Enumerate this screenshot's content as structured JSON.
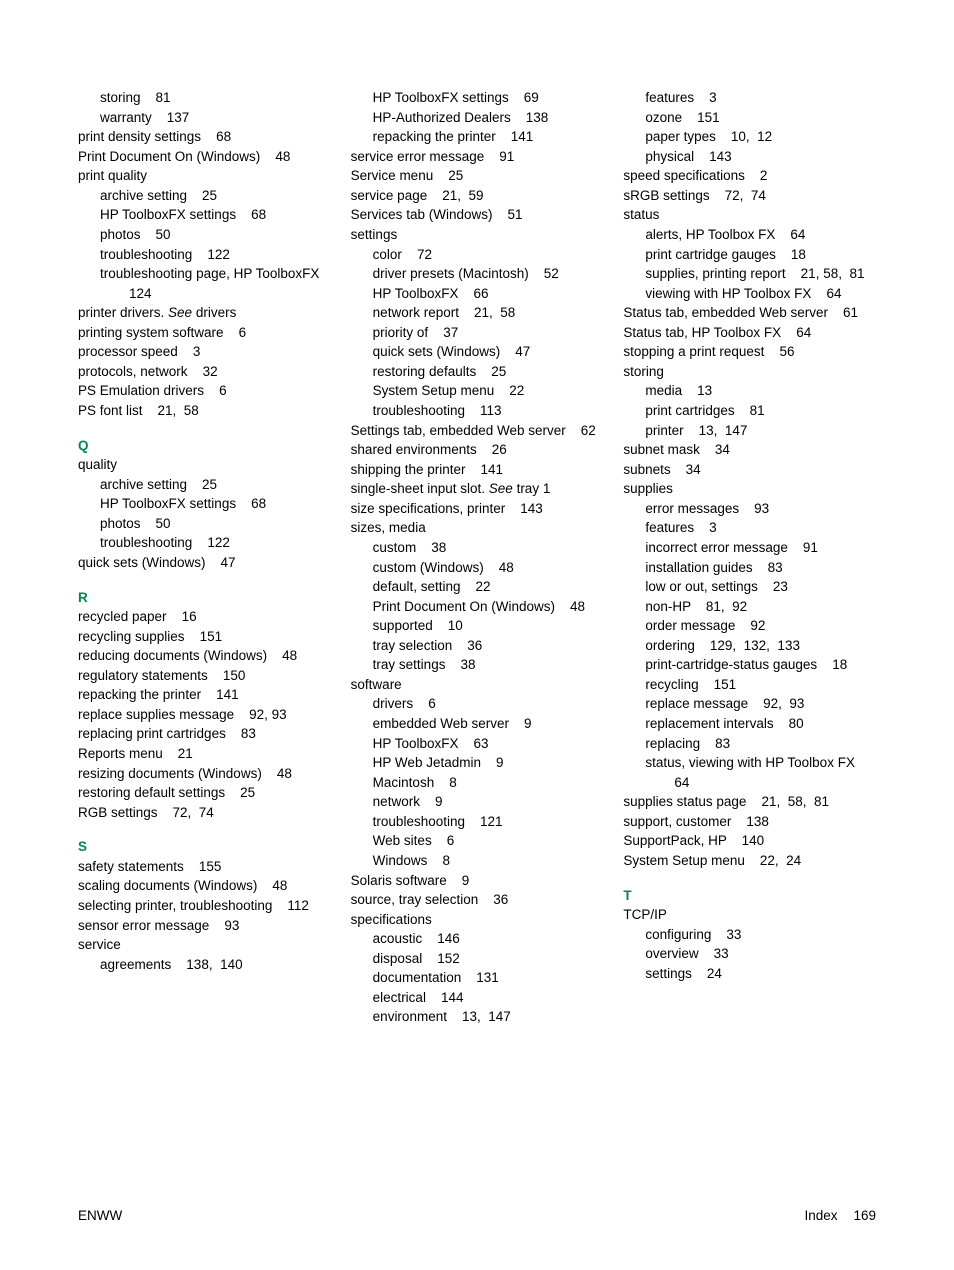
{
  "footer": {
    "left": "ENWW",
    "label": "Index",
    "page": "169"
  },
  "col1": [
    {
      "t": "sub",
      "term": "storing",
      "p": "81"
    },
    {
      "t": "sub",
      "term": "warranty",
      "p": "137"
    },
    {
      "t": "entry",
      "term": "print density settings",
      "p": "68"
    },
    {
      "t": "entry",
      "term": "Print Document On (Windows)",
      "p": "48"
    },
    {
      "t": "entry",
      "term": "print quality",
      "p": ""
    },
    {
      "t": "sub",
      "term": "archive setting",
      "p": "25"
    },
    {
      "t": "sub",
      "term": "HP ToolboxFX settings",
      "p": "68"
    },
    {
      "t": "sub",
      "term": "photos",
      "p": "50"
    },
    {
      "t": "sub",
      "term": "troubleshooting",
      "p": "122"
    },
    {
      "t": "sub",
      "term": "troubleshooting page, HP ToolboxFX",
      "p": "124"
    },
    {
      "t": "entry",
      "term": "printer drivers.",
      "see": "See",
      "seeTarget": "drivers"
    },
    {
      "t": "entry",
      "term": "printing system software",
      "p": "6"
    },
    {
      "t": "entry",
      "term": "processor speed",
      "p": "3"
    },
    {
      "t": "entry",
      "term": "protocols, network",
      "p": "32"
    },
    {
      "t": "entry",
      "term": "PS Emulation drivers",
      "p": "6"
    },
    {
      "t": "entry",
      "term": "PS font list",
      "p": "21,  58"
    },
    {
      "t": "letter",
      "term": "Q"
    },
    {
      "t": "entry",
      "term": "quality",
      "p": ""
    },
    {
      "t": "sub",
      "term": "archive setting",
      "p": "25"
    },
    {
      "t": "sub",
      "term": "HP ToolboxFX settings",
      "p": "68"
    },
    {
      "t": "sub",
      "term": "photos",
      "p": "50"
    },
    {
      "t": "sub",
      "term": "troubleshooting",
      "p": "122"
    },
    {
      "t": "entry",
      "term": "quick sets (Windows)",
      "p": "47"
    },
    {
      "t": "letter",
      "term": "R"
    },
    {
      "t": "entry",
      "term": "recycled paper",
      "p": "16"
    },
    {
      "t": "entry",
      "term": "recycling supplies",
      "p": "151"
    },
    {
      "t": "entry",
      "term": "reducing documents (Windows)",
      "p": "48"
    },
    {
      "t": "entry",
      "term": "regulatory statements",
      "p": "150"
    },
    {
      "t": "entry",
      "term": "repacking the printer",
      "p": "141"
    },
    {
      "t": "entry",
      "term": "replace supplies message",
      "p": "92, 93"
    },
    {
      "t": "entry",
      "term": "replacing print cartridges",
      "p": "83"
    },
    {
      "t": "entry",
      "term": "Reports menu",
      "p": "21"
    },
    {
      "t": "entry",
      "term": "resizing documents (Windows)",
      "p": "48"
    },
    {
      "t": "entry",
      "term": "restoring default settings",
      "p": "25"
    },
    {
      "t": "entry",
      "term": "RGB settings",
      "p": "72,  74"
    },
    {
      "t": "letter",
      "term": "S"
    },
    {
      "t": "entry",
      "term": "safety statements",
      "p": "155"
    },
    {
      "t": "entry",
      "term": "scaling documents (Windows)",
      "p": "48"
    },
    {
      "t": "entry",
      "term": "selecting printer, troubleshooting",
      "p": "112"
    },
    {
      "t": "entry",
      "term": "sensor error message",
      "p": "93"
    },
    {
      "t": "entry",
      "term": "service",
      "p": ""
    },
    {
      "t": "sub",
      "term": "agreements",
      "p": "138,  140"
    }
  ],
  "col2": [
    {
      "t": "sub",
      "term": "HP ToolboxFX settings",
      "p": "69"
    },
    {
      "t": "sub",
      "term": "HP-Authorized Dealers",
      "p": "138"
    },
    {
      "t": "sub",
      "term": "repacking the printer",
      "p": "141"
    },
    {
      "t": "entry",
      "term": "service error message",
      "p": "91"
    },
    {
      "t": "entry",
      "term": "Service menu",
      "p": "25"
    },
    {
      "t": "entry",
      "term": "service page",
      "p": "21,  59"
    },
    {
      "t": "entry",
      "term": "Services tab (Windows)",
      "p": "51"
    },
    {
      "t": "entry",
      "term": "settings",
      "p": ""
    },
    {
      "t": "sub",
      "term": "color",
      "p": "72"
    },
    {
      "t": "sub",
      "term": "driver presets (Macintosh)",
      "p": "52"
    },
    {
      "t": "sub",
      "term": "HP ToolboxFX",
      "p": "66"
    },
    {
      "t": "sub",
      "term": "network report",
      "p": "21,  58"
    },
    {
      "t": "sub",
      "term": "priority of",
      "p": "37"
    },
    {
      "t": "sub",
      "term": "quick sets (Windows)",
      "p": "47"
    },
    {
      "t": "sub",
      "term": "restoring defaults",
      "p": "25"
    },
    {
      "t": "sub",
      "term": "System Setup menu",
      "p": "22"
    },
    {
      "t": "sub",
      "term": "troubleshooting",
      "p": "113"
    },
    {
      "t": "entry",
      "term": "Settings tab, embedded Web server",
      "p": "62"
    },
    {
      "t": "entry",
      "term": "shared environments",
      "p": "26"
    },
    {
      "t": "entry",
      "term": "shipping the printer",
      "p": "141"
    },
    {
      "t": "entry",
      "term": "single-sheet input slot.",
      "see": "See",
      "seeTarget": "tray 1"
    },
    {
      "t": "entry",
      "term": "size specifications, printer",
      "p": "143"
    },
    {
      "t": "entry",
      "term": "sizes, media",
      "p": ""
    },
    {
      "t": "sub",
      "term": "custom",
      "p": "38"
    },
    {
      "t": "sub",
      "term": "custom (Windows)",
      "p": "48"
    },
    {
      "t": "sub",
      "term": "default, setting",
      "p": "22"
    },
    {
      "t": "sub",
      "term": "Print Document On (Windows)",
      "p": "48"
    },
    {
      "t": "sub",
      "term": "supported",
      "p": "10"
    },
    {
      "t": "sub",
      "term": "tray selection",
      "p": "36"
    },
    {
      "t": "sub",
      "term": "tray settings",
      "p": "38"
    },
    {
      "t": "entry",
      "term": "software",
      "p": ""
    },
    {
      "t": "sub",
      "term": "drivers",
      "p": "6"
    },
    {
      "t": "sub",
      "term": "embedded Web server",
      "p": "9"
    },
    {
      "t": "sub",
      "term": "HP ToolboxFX",
      "p": "63"
    },
    {
      "t": "sub",
      "term": "HP Web Jetadmin",
      "p": "9"
    },
    {
      "t": "sub",
      "term": "Macintosh",
      "p": "8"
    },
    {
      "t": "sub",
      "term": "network",
      "p": "9"
    },
    {
      "t": "sub",
      "term": "troubleshooting",
      "p": "121"
    },
    {
      "t": "sub",
      "term": "Web sites",
      "p": "6"
    },
    {
      "t": "sub",
      "term": "Windows",
      "p": "8"
    },
    {
      "t": "entry",
      "term": "Solaris software",
      "p": "9"
    },
    {
      "t": "entry",
      "term": "source, tray selection",
      "p": "36"
    },
    {
      "t": "entry",
      "term": "specifications",
      "p": ""
    },
    {
      "t": "sub",
      "term": "acoustic",
      "p": "146"
    },
    {
      "t": "sub",
      "term": "disposal",
      "p": "152"
    },
    {
      "t": "sub",
      "term": "documentation",
      "p": "131"
    },
    {
      "t": "sub",
      "term": "electrical",
      "p": "144"
    },
    {
      "t": "sub",
      "term": "environment",
      "p": "13,  147"
    }
  ],
  "col3": [
    {
      "t": "sub",
      "term": "features",
      "p": "3"
    },
    {
      "t": "sub",
      "term": "ozone",
      "p": "151"
    },
    {
      "t": "sub",
      "term": "paper types",
      "p": "10,  12"
    },
    {
      "t": "sub",
      "term": "physical",
      "p": "143"
    },
    {
      "t": "entry",
      "term": "speed specifications",
      "p": "2"
    },
    {
      "t": "entry",
      "term": "sRGB settings",
      "p": "72,  74"
    },
    {
      "t": "entry",
      "term": "status",
      "p": ""
    },
    {
      "t": "sub",
      "term": "alerts, HP Toolbox FX",
      "p": "64"
    },
    {
      "t": "sub",
      "term": "print cartridge gauges",
      "p": "18"
    },
    {
      "t": "sub",
      "term": "supplies, printing report",
      "p": "21, 58,  81"
    },
    {
      "t": "sub",
      "term": "viewing with HP Toolbox FX",
      "p": "64"
    },
    {
      "t": "entry",
      "term": "Status tab, embedded Web server",
      "p": "61"
    },
    {
      "t": "entry",
      "term": "Status tab, HP Toolbox FX",
      "p": "64"
    },
    {
      "t": "entry",
      "term": "stopping a print request",
      "p": "56"
    },
    {
      "t": "entry",
      "term": "storing",
      "p": ""
    },
    {
      "t": "sub",
      "term": "media",
      "p": "13"
    },
    {
      "t": "sub",
      "term": "print cartridges",
      "p": "81"
    },
    {
      "t": "sub",
      "term": "printer",
      "p": "13,  147"
    },
    {
      "t": "entry",
      "term": "subnet mask",
      "p": "34"
    },
    {
      "t": "entry",
      "term": "subnets",
      "p": "34"
    },
    {
      "t": "entry",
      "term": "supplies",
      "p": ""
    },
    {
      "t": "sub",
      "term": "error messages",
      "p": "93"
    },
    {
      "t": "sub",
      "term": "features",
      "p": "3"
    },
    {
      "t": "sub",
      "term": "incorrect error message",
      "p": "91"
    },
    {
      "t": "sub",
      "term": "installation guides",
      "p": "83"
    },
    {
      "t": "sub",
      "term": "low or out, settings",
      "p": "23"
    },
    {
      "t": "sub",
      "term": "non-HP",
      "p": "81,  92"
    },
    {
      "t": "sub",
      "term": "order message",
      "p": "92"
    },
    {
      "t": "sub",
      "term": "ordering",
      "p": "129,  132,  133"
    },
    {
      "t": "sub",
      "term": "print-cartridge-status gauges",
      "p": "18"
    },
    {
      "t": "sub",
      "term": "recycling",
      "p": "151"
    },
    {
      "t": "sub",
      "term": "replace message",
      "p": "92,  93"
    },
    {
      "t": "sub",
      "term": "replacement intervals",
      "p": "80"
    },
    {
      "t": "sub",
      "term": "replacing",
      "p": "83"
    },
    {
      "t": "sub",
      "term": "status, viewing with HP Toolbox FX",
      "p": "64"
    },
    {
      "t": "entry",
      "term": "supplies status page",
      "p": "21,  58,  81"
    },
    {
      "t": "entry",
      "term": "support, customer",
      "p": "138"
    },
    {
      "t": "entry",
      "term": "SupportPack, HP",
      "p": "140"
    },
    {
      "t": "entry",
      "term": "System Setup menu",
      "p": "22,  24"
    },
    {
      "t": "letter",
      "term": "T"
    },
    {
      "t": "entry",
      "term": "TCP/IP",
      "p": ""
    },
    {
      "t": "sub",
      "term": "configuring",
      "p": "33"
    },
    {
      "t": "sub",
      "term": "overview",
      "p": "33"
    },
    {
      "t": "sub",
      "term": "settings",
      "p": "24"
    }
  ]
}
